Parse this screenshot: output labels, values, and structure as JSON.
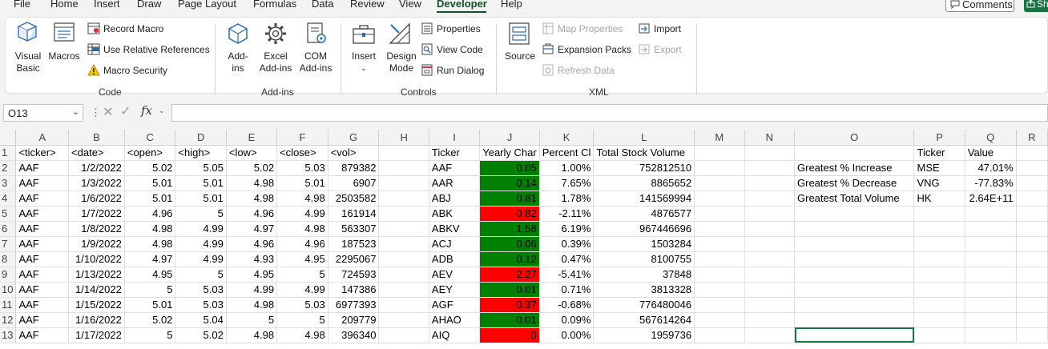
{
  "menu": {
    "tabs": [
      "File",
      "Home",
      "Insert",
      "Draw",
      "Page Layout",
      "Formulas",
      "Data",
      "Review",
      "View",
      "Developer",
      "Help"
    ],
    "active": "Developer",
    "comments_label": "Comments",
    "share_label": "Sh"
  },
  "ribbon": {
    "code": {
      "group_label": "Code",
      "visual_basic": [
        "Visual",
        "Basic"
      ],
      "macros": "Macros",
      "record_macro": "Record Macro",
      "use_relative": "Use Relative References",
      "macro_security": "Macro Security"
    },
    "addins": {
      "group_label": "Add-ins",
      "addins": [
        "Add-",
        "ins"
      ],
      "excel_addins": [
        "Excel",
        "Add-ins"
      ],
      "com_addins": [
        "COM",
        "Add-ins"
      ]
    },
    "controls": {
      "group_label": "Controls",
      "insert": "Insert",
      "design_mode": [
        "Design",
        "Mode"
      ],
      "properties": "Properties",
      "view_code": "View Code",
      "run_dialog": "Run Dialog"
    },
    "xml": {
      "group_label": "XML",
      "source": "Source",
      "map_properties": "Map Properties",
      "expansion_packs": "Expansion Packs",
      "refresh_data": "Refresh Data",
      "import": "Import",
      "export": "Export"
    }
  },
  "formula_bar": {
    "name_box": "O13",
    "formula": ""
  },
  "sheet": {
    "columns": [
      "A",
      "B",
      "C",
      "D",
      "E",
      "F",
      "G",
      "H",
      "I",
      "J",
      "K",
      "L",
      "M",
      "N",
      "O",
      "P",
      "Q",
      "R"
    ],
    "rows": [
      [
        "<ticker>",
        "<date>",
        "<open>",
        "<high>",
        "<low>",
        "<close>",
        "<vol>",
        "",
        "Ticker",
        "Yearly Char",
        "Percent Cl",
        "Total Stock Volume",
        "",
        "",
        "",
        "Ticker",
        "Value",
        ""
      ],
      [
        "AAF",
        "1/2/2022",
        "5.02",
        "5.05",
        "5.02",
        "5.03",
        "879382",
        "",
        "AAF",
        "0.05",
        "1.00%",
        "752812510",
        "",
        "",
        "Greatest % Increase",
        "MSE",
        "47.01%",
        ""
      ],
      [
        "AAF",
        "1/3/2022",
        "5.01",
        "5.01",
        "4.98",
        "5.01",
        "6907",
        "",
        "AAR",
        "0.14",
        "7.65%",
        "8865652",
        "",
        "",
        "Greatest % Decrease",
        "VNG",
        "-77.83%",
        ""
      ],
      [
        "AAF",
        "1/6/2022",
        "5.01",
        "5.01",
        "4.98",
        "4.98",
        "2503582",
        "",
        "ABJ",
        "0.81",
        "1.78%",
        "141569994",
        "",
        "",
        "Greatest Total Volume",
        "HK",
        "2.64E+11",
        ""
      ],
      [
        "AAF",
        "1/7/2022",
        "4.96",
        "5",
        "4.96",
        "4.99",
        "161914",
        "",
        "ABK",
        "-0.82",
        "-2.11%",
        "4876577",
        "",
        "",
        "",
        "",
        "",
        ""
      ],
      [
        "AAF",
        "1/8/2022",
        "4.98",
        "4.99",
        "4.97",
        "4.98",
        "563307",
        "",
        "ABKV",
        "1.58",
        "6.19%",
        "967446696",
        "",
        "",
        "",
        "",
        "",
        ""
      ],
      [
        "AAF",
        "1/9/2022",
        "4.98",
        "4.99",
        "4.96",
        "4.96",
        "187523",
        "",
        "ACJ",
        "0.06",
        "0.39%",
        "1503284",
        "",
        "",
        "",
        "",
        "",
        ""
      ],
      [
        "AAF",
        "1/10/2022",
        "4.97",
        "4.99",
        "4.93",
        "4.95",
        "2295067",
        "",
        "ADB",
        "0.12",
        "0.47%",
        "8100755",
        "",
        "",
        "",
        "",
        "",
        ""
      ],
      [
        "AAF",
        "1/13/2022",
        "4.95",
        "5",
        "4.95",
        "5",
        "724593",
        "",
        "AEV",
        "-2.27",
        "-5.41%",
        "37848",
        "",
        "",
        "",
        "",
        "",
        ""
      ],
      [
        "AAF",
        "1/14/2022",
        "5",
        "5.03",
        "4.99",
        "4.99",
        "147386",
        "",
        "AEY",
        "0.01",
        "0.71%",
        "3813328",
        "",
        "",
        "",
        "",
        "",
        ""
      ],
      [
        "AAF",
        "1/15/2022",
        "5.01",
        "5.03",
        "4.98",
        "5.03",
        "6977393",
        "",
        "AGF",
        "-0.37",
        "-0.68%",
        "776480046",
        "",
        "",
        "",
        "",
        "",
        ""
      ],
      [
        "AAF",
        "1/16/2022",
        "5.02",
        "5.04",
        "5",
        "5",
        "209779",
        "",
        "AHAO",
        "0.01",
        "0.09%",
        "567614264",
        "",
        "",
        "",
        "",
        "",
        ""
      ],
      [
        "AAF",
        "1/17/2022",
        "5",
        "5.02",
        "4.98",
        "4.98",
        "396340",
        "",
        "AIQ",
        "0",
        "0.00%",
        "1959736",
        "",
        "",
        "",
        "",
        "",
        ""
      ]
    ],
    "yearly_change_fill": [
      "green",
      "green",
      "green",
      "red",
      "green",
      "green",
      "green",
      "red",
      "green",
      "red",
      "green",
      "red"
    ],
    "selected_cell": "O13",
    "colors": {
      "positive": "#008000",
      "negative": "#ff0000",
      "accent": "#115229"
    }
  }
}
